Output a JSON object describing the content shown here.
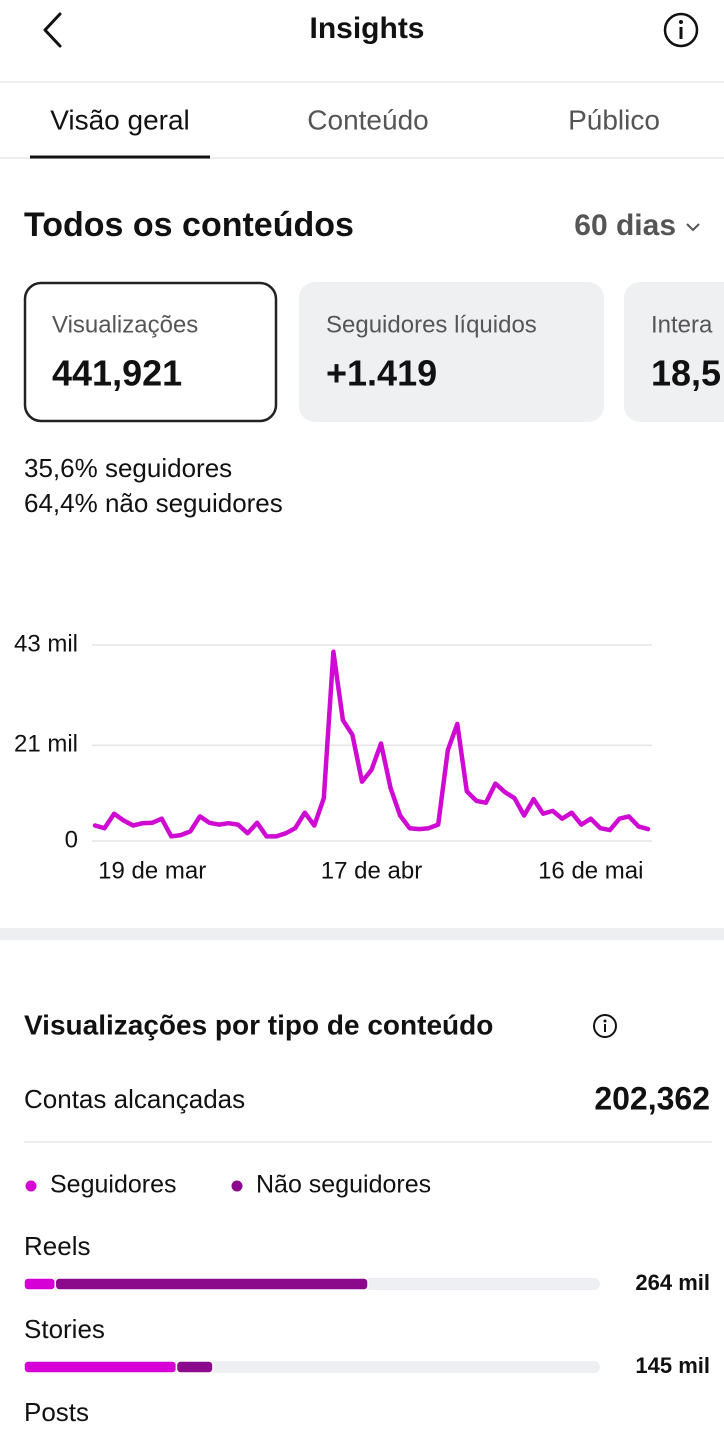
{
  "header": {
    "title": "Insights"
  },
  "tabs": [
    "Visão geral",
    "Conteúdo",
    "Público"
  ],
  "summary": {
    "title": "Todos os conteúdos",
    "period": "60 dias"
  },
  "cards": [
    {
      "label": "Visualizações",
      "value": "441,921"
    },
    {
      "label": "Seguidores líquidos",
      "value": "+1.419"
    },
    {
      "label": "Intera",
      "value": "18,5"
    }
  ],
  "audience": [
    {
      "share": "35,6%",
      "label": "seguidores"
    },
    {
      "share": "64,4%",
      "label": "não seguidores"
    }
  ],
  "reach": {
    "label": "Contas alcançadas",
    "value": "202,362"
  },
  "chart_data": [
    {
      "type": "line",
      "categories": [
        null,
        null,
        null,
        null,
        null,
        null,
        "19 de mar",
        null,
        null,
        null,
        null,
        null,
        null,
        null,
        null,
        null,
        null,
        null,
        null,
        null,
        null,
        null,
        null,
        null,
        null,
        null,
        null,
        null,
        null,
        "17 de abr",
        null,
        null,
        null,
        null,
        null,
        null,
        null,
        null,
        null,
        null,
        null,
        null,
        null,
        null,
        null,
        null,
        null,
        null,
        null,
        null,
        null,
        null,
        "16 de mai",
        null,
        null,
        null,
        null,
        null,
        null
      ],
      "values": [
        3.4,
        2.8,
        6,
        4.5,
        3.4,
        3.9,
        4,
        4.9,
        1,
        1.3,
        2.1,
        5.4,
        4,
        3.6,
        3.9,
        3.6,
        1.7,
        4,
        1,
        1,
        1.7,
        2.8,
        6.2,
        3.4,
        9.4,
        41.5,
        26.5,
        23.3,
        13,
        15.6,
        21.4,
        11.6,
        5.6,
        2.8,
        2.6,
        2.8,
        3.6,
        19.9,
        25.7,
        10.9,
        8.8,
        8.4,
        12.6,
        10.7,
        9.4,
        5.6,
        9.2,
        6,
        6.6,
        4.9,
        6.2,
        3.6,
        4.9,
        2.8,
        2.4,
        4.9,
        5.4,
        3.2,
        2.6
      ],
      "color": "#cf0bd3",
      "ylim": [
        0,
        43
      ],
      "yticks": [
        0,
        {
          "value": 21,
          "label": "21 mil"
        },
        {
          "value": 43,
          "label": "43 mil"
        }
      ],
      "grid": true
    },
    {
      "type": "bar",
      "orientation": "horizontal",
      "stacked": true,
      "title": "Visualizações por tipo de conteúdo",
      "categories": [
        "Reels",
        "Stories",
        "Posts"
      ],
      "series": [
        {
          "name": "Seguidores",
          "color": "#d600d6",
          "values": [
            24,
            117,
            null
          ]
        },
        {
          "name": "Não seguidores",
          "color": "#8b0a8b",
          "values": [
            240,
            28,
            null
          ]
        }
      ],
      "total_labels": [
        "264 mil",
        "145 mil",
        null
      ],
      "xlim": [
        0,
        442
      ]
    }
  ]
}
